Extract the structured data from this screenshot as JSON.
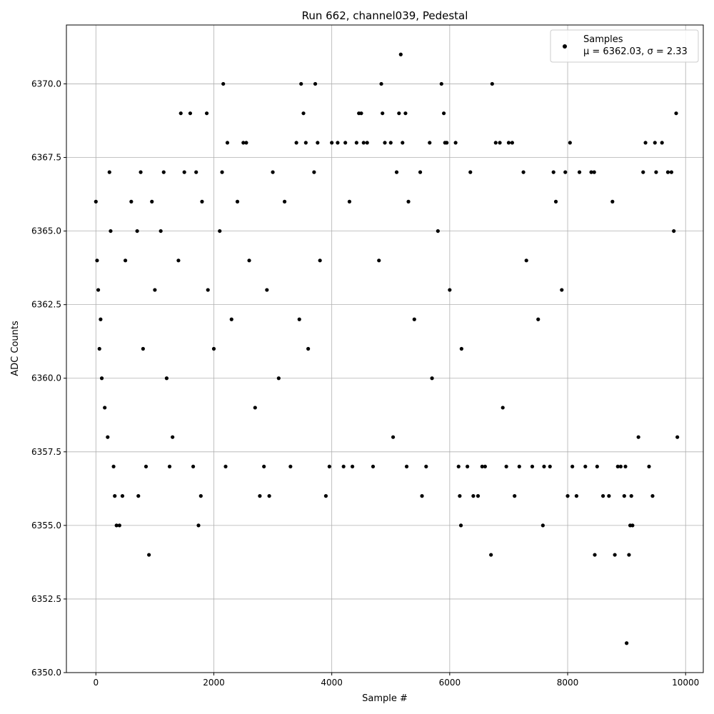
{
  "chart_data": {
    "type": "scatter",
    "title": "Run 662, channel039, Pedestal",
    "xlabel": "Sample #",
    "ylabel": "ADC Counts",
    "xlim": [
      -500,
      10300
    ],
    "ylim": [
      6350.0,
      6372.0
    ],
    "x_ticks": [
      0,
      2000,
      4000,
      6000,
      8000,
      10000
    ],
    "x_tick_labels": [
      "0",
      "2000",
      "4000",
      "6000",
      "8000",
      "10000"
    ],
    "y_ticks": [
      6350.0,
      6352.5,
      6355.0,
      6357.5,
      6360.0,
      6362.5,
      6365.0,
      6367.5,
      6370.0
    ],
    "y_tick_labels": [
      "6350.0",
      "6352.5",
      "6355.0",
      "6357.5",
      "6360.0",
      "6362.5",
      "6365.0",
      "6367.5",
      "6370.0"
    ],
    "grid": true,
    "legend": {
      "placement": "top-right",
      "label": "Samples",
      "stats": "μ = 6362.03, σ = 2.33"
    },
    "marker_color": "#000000",
    "series": [
      {
        "name": "Samples",
        "points": [
          [
            0,
            6366
          ],
          [
            20,
            6364
          ],
          [
            40,
            6363
          ],
          [
            60,
            6361
          ],
          [
            80,
            6362
          ],
          [
            100,
            6360
          ],
          [
            150,
            6359
          ],
          [
            200,
            6358
          ],
          [
            230,
            6367
          ],
          [
            250,
            6365
          ],
          [
            300,
            6357
          ],
          [
            320,
            6356
          ],
          [
            350,
            6355
          ],
          [
            400,
            6355
          ],
          [
            450,
            6356
          ],
          [
            500,
            6364
          ],
          [
            600,
            6366
          ],
          [
            700,
            6365
          ],
          [
            720,
            6356
          ],
          [
            760,
            6367
          ],
          [
            800,
            6361
          ],
          [
            850,
            6357
          ],
          [
            900,
            6354
          ],
          [
            950,
            6366
          ],
          [
            1000,
            6363
          ],
          [
            1100,
            6365
          ],
          [
            1150,
            6367
          ],
          [
            1200,
            6360
          ],
          [
            1250,
            6357
          ],
          [
            1300,
            6358
          ],
          [
            1400,
            6364
          ],
          [
            1440,
            6369
          ],
          [
            1500,
            6367
          ],
          [
            1600,
            6369
          ],
          [
            1650,
            6357
          ],
          [
            1700,
            6367
          ],
          [
            1740,
            6355
          ],
          [
            1780,
            6356
          ],
          [
            1800,
            6366
          ],
          [
            1880,
            6369
          ],
          [
            1900,
            6363
          ],
          [
            2000,
            6361
          ],
          [
            2100,
            6365
          ],
          [
            2140,
            6367
          ],
          [
            2160,
            6370
          ],
          [
            2200,
            6357
          ],
          [
            2230,
            6368
          ],
          [
            2300,
            6362
          ],
          [
            2400,
            6366
          ],
          [
            2500,
            6368
          ],
          [
            2550,
            6368
          ],
          [
            2600,
            6364
          ],
          [
            2700,
            6359
          ],
          [
            2780,
            6356
          ],
          [
            2850,
            6357
          ],
          [
            2900,
            6363
          ],
          [
            2940,
            6356
          ],
          [
            3000,
            6367
          ],
          [
            3100,
            6360
          ],
          [
            3200,
            6366
          ],
          [
            3300,
            6357
          ],
          [
            3400,
            6368
          ],
          [
            3450,
            6362
          ],
          [
            3480,
            6370
          ],
          [
            3520,
            6369
          ],
          [
            3560,
            6368
          ],
          [
            3600,
            6361
          ],
          [
            3700,
            6367
          ],
          [
            3720,
            6370
          ],
          [
            3760,
            6368
          ],
          [
            3800,
            6364
          ],
          [
            3900,
            6356
          ],
          [
            3960,
            6357
          ],
          [
            4000,
            6368
          ],
          [
            4100,
            6368
          ],
          [
            4200,
            6357
          ],
          [
            4230,
            6368
          ],
          [
            4300,
            6366
          ],
          [
            4350,
            6357
          ],
          [
            4420,
            6368
          ],
          [
            4460,
            6369
          ],
          [
            4500,
            6369
          ],
          [
            4540,
            6368
          ],
          [
            4600,
            6368
          ],
          [
            4700,
            6357
          ],
          [
            4800,
            6364
          ],
          [
            4840,
            6370
          ],
          [
            4860,
            6369
          ],
          [
            4900,
            6368
          ],
          [
            5000,
            6368
          ],
          [
            5040,
            6358
          ],
          [
            5100,
            6367
          ],
          [
            5140,
            6369
          ],
          [
            5170,
            6371
          ],
          [
            5200,
            6368
          ],
          [
            5250,
            6369
          ],
          [
            5270,
            6357
          ],
          [
            5300,
            6366
          ],
          [
            5400,
            6362
          ],
          [
            5500,
            6367
          ],
          [
            5530,
            6356
          ],
          [
            5600,
            6357
          ],
          [
            5660,
            6368
          ],
          [
            5700,
            6360
          ],
          [
            5800,
            6365
          ],
          [
            5860,
            6370
          ],
          [
            5900,
            6369
          ],
          [
            5920,
            6368
          ],
          [
            5950,
            6368
          ],
          [
            6000,
            6363
          ],
          [
            6100,
            6368
          ],
          [
            6150,
            6357
          ],
          [
            6170,
            6356
          ],
          [
            6190,
            6355
          ],
          [
            6200,
            6361
          ],
          [
            6300,
            6357
          ],
          [
            6350,
            6367
          ],
          [
            6400,
            6356
          ],
          [
            6480,
            6356
          ],
          [
            6550,
            6357
          ],
          [
            6600,
            6357
          ],
          [
            6700,
            6354
          ],
          [
            6720,
            6370
          ],
          [
            6780,
            6368
          ],
          [
            6850,
            6368
          ],
          [
            6900,
            6359
          ],
          [
            6960,
            6357
          ],
          [
            7000,
            6368
          ],
          [
            7060,
            6368
          ],
          [
            7100,
            6356
          ],
          [
            7180,
            6357
          ],
          [
            7250,
            6367
          ],
          [
            7300,
            6364
          ],
          [
            7400,
            6357
          ],
          [
            7500,
            6362
          ],
          [
            7580,
            6355
          ],
          [
            7600,
            6357
          ],
          [
            7700,
            6357
          ],
          [
            7760,
            6367
          ],
          [
            7800,
            6366
          ],
          [
            7900,
            6363
          ],
          [
            7960,
            6367
          ],
          [
            8000,
            6356
          ],
          [
            8040,
            6368
          ],
          [
            8080,
            6357
          ],
          [
            8150,
            6356
          ],
          [
            8200,
            6367
          ],
          [
            8300,
            6357
          ],
          [
            8400,
            6367
          ],
          [
            8450,
            6367
          ],
          [
            8460,
            6354
          ],
          [
            8500,
            6357
          ],
          [
            8600,
            6356
          ],
          [
            8700,
            6356
          ],
          [
            8760,
            6366
          ],
          [
            8800,
            6354
          ],
          [
            8850,
            6357
          ],
          [
            8900,
            6357
          ],
          [
            8960,
            6356
          ],
          [
            8980,
            6357
          ],
          [
            9000,
            6351
          ],
          [
            9040,
            6354
          ],
          [
            9060,
            6355
          ],
          [
            9080,
            6356
          ],
          [
            9100,
            6355
          ],
          [
            9200,
            6358
          ],
          [
            9280,
            6367
          ],
          [
            9320,
            6368
          ],
          [
            9380,
            6357
          ],
          [
            9440,
            6356
          ],
          [
            9480,
            6368
          ],
          [
            9500,
            6367
          ],
          [
            9600,
            6368
          ],
          [
            9700,
            6367
          ],
          [
            9760,
            6367
          ],
          [
            9800,
            6365
          ],
          [
            9840,
            6369
          ],
          [
            9860,
            6358
          ]
        ]
      }
    ]
  }
}
